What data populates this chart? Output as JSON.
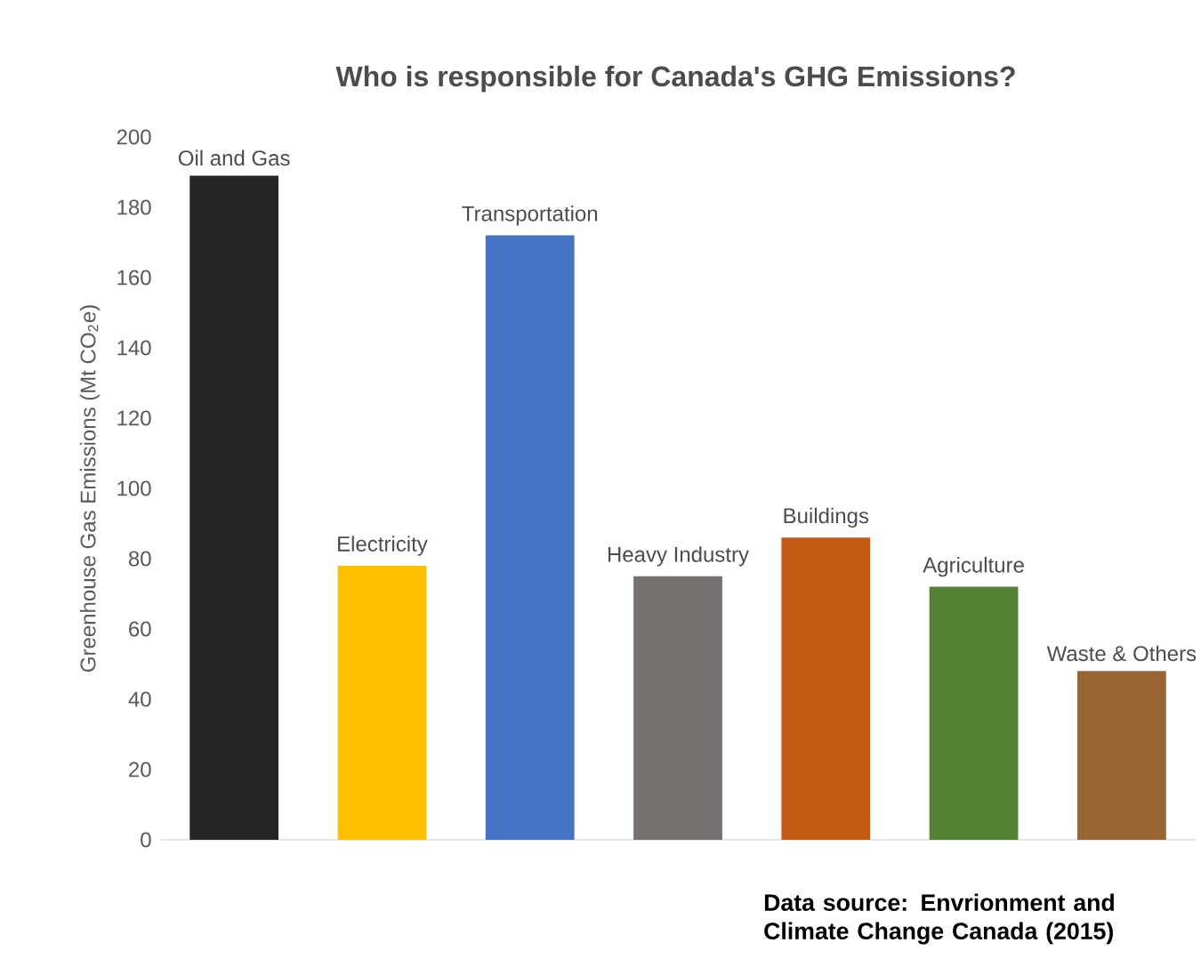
{
  "chart_data": {
    "type": "bar",
    "title": "Who is responsible for Canada's GHG Emissions?",
    "ylabel": "Greenhouse Gas Emissions (Mt CO$_{2}$e)",
    "categories": [
      "Oil and Gas",
      "Electricity",
      "Transportation",
      "Heavy Industry",
      "Buildings",
      "Agriculture",
      "Waste & Others"
    ],
    "values": [
      189,
      78,
      172,
      75,
      86,
      72,
      48
    ],
    "colors": [
      "#262626",
      "#ffc000",
      "#4472c4",
      "#767171",
      "#c55a11",
      "#548235",
      "#996633"
    ],
    "ylim": [
      0,
      200
    ],
    "yticks": [
      0,
      20,
      40,
      60,
      80,
      100,
      120,
      140,
      160,
      180,
      200
    ],
    "tick_labels": "y",
    "annotations": [
      "Data source: Envrionment and Climate Change Canada (2015)"
    ]
  }
}
